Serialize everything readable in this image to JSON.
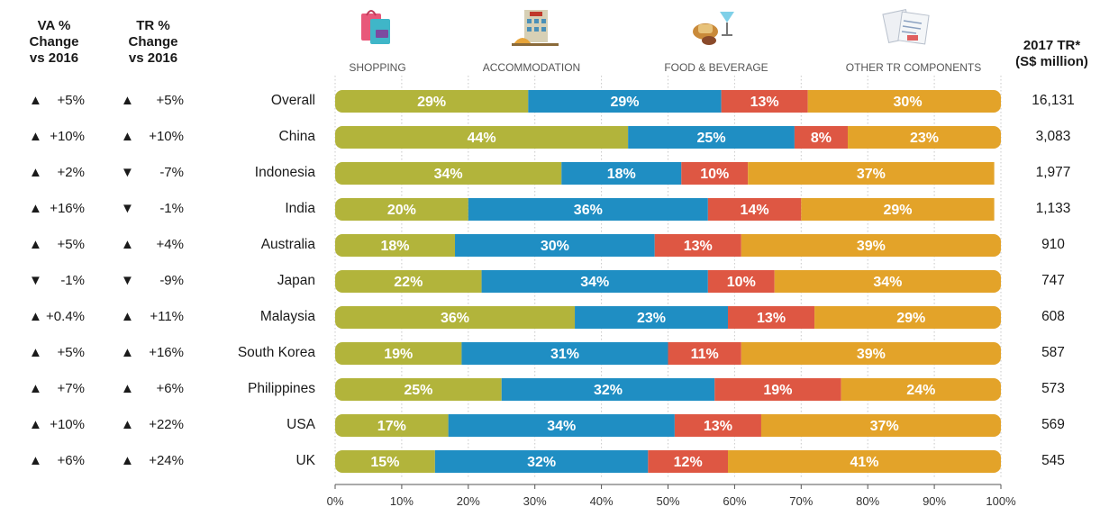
{
  "headers": {
    "va_change": "VA %\nChange\nvs 2016",
    "tr_change": "TR %\nChange\nvs 2016",
    "tr_total": "2017 TR*\n(S$ million)"
  },
  "colors": {
    "shopping": "#b2b43b",
    "accommodation": "#1f8ec3",
    "food_beverage": "#de5743",
    "other": "#e3a329"
  },
  "categories_display": [
    {
      "label": "SHOPPING",
      "icon": "shopping-bag-icon"
    },
    {
      "label": "ACCOMMODATION",
      "icon": "hotel-icon"
    },
    {
      "label": "FOOD & BEVERAGE",
      "icon": "food-drink-icon"
    },
    {
      "label": "OTHER TR COMPONENTS",
      "icon": "documents-icon"
    }
  ],
  "rows": [
    {
      "va_dir": "up",
      "va": "+5%",
      "tr_dir": "up",
      "tr": "+5%",
      "total": "16,131"
    },
    {
      "va_dir": "up",
      "va": "+10%",
      "tr_dir": "up",
      "tr": "+10%",
      "total": "3,083"
    },
    {
      "va_dir": "up",
      "va": "+2%",
      "tr_dir": "down",
      "tr": "-7%",
      "total": "1,977"
    },
    {
      "va_dir": "up",
      "va": "+16%",
      "tr_dir": "down",
      "tr": "-1%",
      "total": "1,133"
    },
    {
      "va_dir": "up",
      "va": "+5%",
      "tr_dir": "up",
      "tr": "+4%",
      "total": "910"
    },
    {
      "va_dir": "down",
      "va": "-1%",
      "tr_dir": "down",
      "tr": "-9%",
      "total": "747"
    },
    {
      "va_dir": "up",
      "va": "+0.4%",
      "tr_dir": "up",
      "tr": "+11%",
      "total": "608"
    },
    {
      "va_dir": "up",
      "va": "+5%",
      "tr_dir": "up",
      "tr": "+16%",
      "total": "587"
    },
    {
      "va_dir": "up",
      "va": "+7%",
      "tr_dir": "up",
      "tr": "+6%",
      "total": "573"
    },
    {
      "va_dir": "up",
      "va": "+10%",
      "tr_dir": "up",
      "tr": "+22%",
      "total": "569"
    },
    {
      "va_dir": "up",
      "va": "+6%",
      "tr_dir": "up",
      "tr": "+24%",
      "total": "545"
    }
  ],
  "chart_data": {
    "type": "bar",
    "orientation": "horizontal",
    "stacked": true,
    "categories": [
      "Overall",
      "China",
      "Indonesia",
      "India",
      "Australia",
      "Japan",
      "Malaysia",
      "South Korea",
      "Philippines",
      "USA",
      "UK"
    ],
    "series": [
      {
        "name": "SHOPPING",
        "values": [
          29,
          44,
          34,
          20,
          18,
          22,
          36,
          19,
          25,
          17,
          15
        ],
        "labels": [
          "29%",
          "44%",
          "34%",
          "20%",
          "18%",
          "22%",
          "36%",
          "19%",
          "25%",
          "17%",
          "15%"
        ]
      },
      {
        "name": "ACCOMMODATION",
        "values": [
          29,
          25,
          18,
          36,
          30,
          34,
          23,
          31,
          32,
          34,
          32
        ],
        "labels": [
          "29%",
          "25%",
          "18%",
          "36%",
          "30%",
          "34%",
          "23%",
          "31%",
          "32%",
          "34%",
          "32%"
        ]
      },
      {
        "name": "FOOD & BEVERAGE",
        "values": [
          13,
          8,
          10,
          14,
          13,
          10,
          13,
          11,
          19,
          13,
          12
        ],
        "labels": [
          "13%",
          "8%",
          "10%",
          "14%",
          "13%",
          "10%",
          "13%",
          "11%",
          "19%",
          "13%",
          "12%"
        ]
      },
      {
        "name": "OTHER TR COMPONENTS",
        "values": [
          30,
          23,
          37,
          29,
          39,
          34,
          29,
          39,
          24,
          37,
          41
        ],
        "labels": [
          "30%",
          "23%",
          "37%",
          "29%",
          "39%",
          "34%",
          "29%",
          "39%",
          "24%",
          "37%",
          "41%"
        ]
      }
    ],
    "xlim": [
      0,
      100
    ],
    "xticks": [
      "0%",
      "10%",
      "20%",
      "30%",
      "40%",
      "50%",
      "60%",
      "70%",
      "80%",
      "90%",
      "100%"
    ],
    "grid": true,
    "legend": "top"
  }
}
